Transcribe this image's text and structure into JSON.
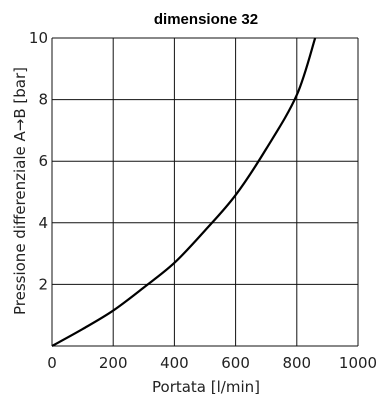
{
  "chart_data": {
    "type": "line",
    "title": "dimensione 32",
    "xlabel": "Portata [l/min]",
    "ylabel": "Pressione differenziale A→B [bar]",
    "xlim": [
      0,
      1000
    ],
    "ylim": [
      0,
      10
    ],
    "x_ticks": [
      "0",
      "200",
      "400",
      "600",
      "800",
      "1000"
    ],
    "y_ticks": [
      "2",
      "4",
      "6",
      "8",
      "10"
    ],
    "grid": true,
    "series": [
      {
        "x": [
          0,
          100,
          200,
          300,
          400,
          500,
          600,
          700,
          800,
          860
        ],
        "y": [
          0,
          0.55,
          1.15,
          1.9,
          2.7,
          3.75,
          4.9,
          6.4,
          8.15,
          10
        ]
      }
    ]
  },
  "colors": {
    "curve": "#000000",
    "grid": "#111111",
    "background": "#ffffff"
  }
}
